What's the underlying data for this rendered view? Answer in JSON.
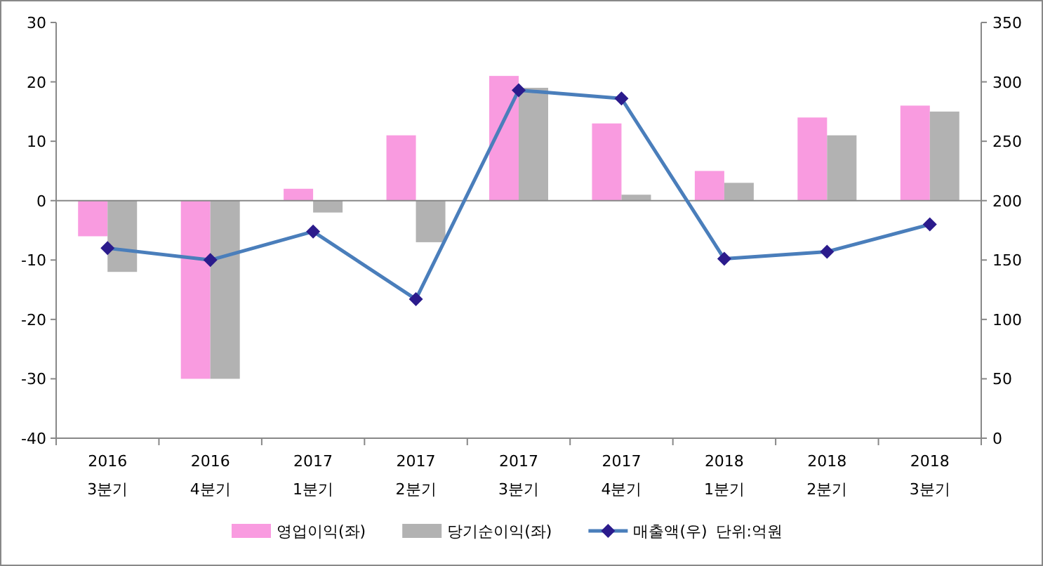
{
  "chart_data": {
    "type": "bar",
    "categories": [
      "2016\n3분기",
      "2016\n4분기",
      "2017\n1분기",
      "2017\n2분기",
      "2017\n3분기",
      "2017\n4분기",
      "2018\n1분기",
      "2018\n2분기",
      "2018\n3분기"
    ],
    "series": [
      {
        "name": "영업이익(좌)",
        "color": "#f99be0",
        "values": [
          -6,
          -30,
          2,
          11,
          21,
          13,
          5,
          14,
          16
        ]
      },
      {
        "name": "당기순이익(좌)",
        "color": "#b2b2b2",
        "values": [
          -12,
          -30,
          -2,
          -7,
          19,
          1,
          3,
          11,
          15
        ]
      },
      {
        "name": "매출액(우)",
        "type": "line",
        "axis": "y2",
        "marker": "diamond",
        "color": "#4a7ebb",
        "values": [
          160,
          150,
          174,
          117,
          293,
          286,
          151,
          157,
          180
        ]
      }
    ],
    "ylim": [
      -40,
      30
    ],
    "yticks": [
      -40,
      -30,
      -20,
      -10,
      0,
      10,
      20,
      30
    ],
    "y2lim": [
      0,
      350
    ],
    "y2ticks": [
      0,
      50,
      100,
      150,
      200,
      250,
      300,
      350
    ],
    "legend": "bottom",
    "annotations": [
      "단위:억원"
    ]
  }
}
